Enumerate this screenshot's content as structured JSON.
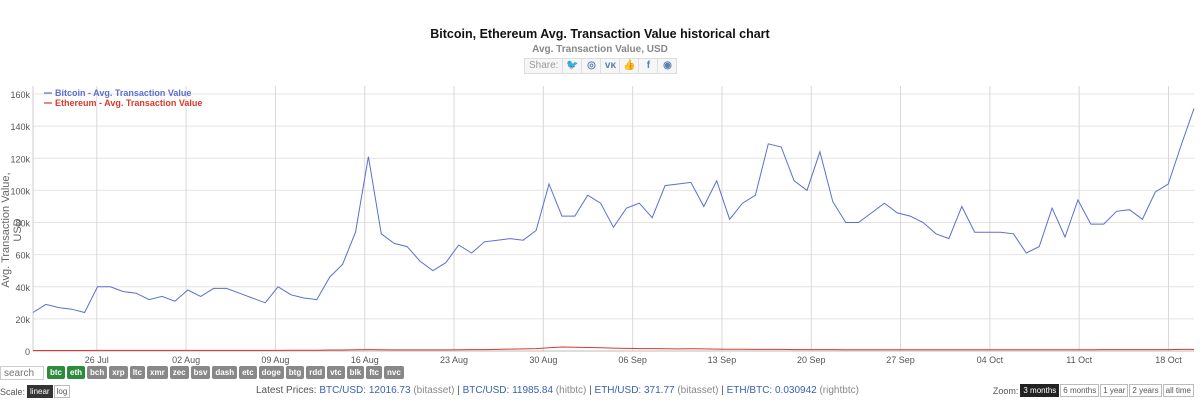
{
  "chart_data": {
    "type": "line",
    "title": "Bitcoin, Ethereum Avg. Transaction Value historical chart",
    "subtitle": "Avg. Transaction Value, USD",
    "ylabel": "Avg. Transaction Value, USD",
    "ylim": [
      0,
      165000
    ],
    "yticks": [
      0,
      20000,
      40000,
      60000,
      80000,
      100000,
      120000,
      140000,
      160000
    ],
    "ytick_labels": [
      "0",
      "20k",
      "40k",
      "60k",
      "80k",
      "100k",
      "120k",
      "140k",
      "160k"
    ],
    "xticks": [
      "26 Jul",
      "02 Aug",
      "09 Aug",
      "16 Aug",
      "23 Aug",
      "30 Aug",
      "06 Sep",
      "13 Sep",
      "20 Sep",
      "27 Sep",
      "04 Oct",
      "11 Oct",
      "18 Oct"
    ],
    "xtick_dates": [
      "2017-07-26",
      "2017-08-02",
      "2017-08-09",
      "2017-08-16",
      "2017-08-23",
      "2017-08-30",
      "2017-09-06",
      "2017-09-13",
      "2017-09-20",
      "2017-09-27",
      "2017-10-04",
      "2017-10-11",
      "2017-10-18"
    ],
    "x_start": "2017-07-21",
    "x_end": "2017-10-20",
    "grid": true,
    "legend_position": "top-left",
    "series": [
      {
        "name": "Bitcoin - Avg. Transaction Value",
        "color": "#5b6fcf",
        "values": [
          24000,
          29000,
          27000,
          26000,
          24000,
          40000,
          40000,
          37000,
          36000,
          32000,
          34000,
          31000,
          38000,
          34000,
          39000,
          39000,
          36000,
          33000,
          30000,
          40000,
          35000,
          33000,
          32000,
          46000,
          54000,
          74000,
          121000,
          73000,
          67000,
          65000,
          56000,
          50000,
          55000,
          66000,
          61000,
          68000,
          69000,
          70000,
          69000,
          75000,
          104000,
          84000,
          84000,
          97000,
          92000,
          77000,
          89000,
          92000,
          83000,
          103000,
          104000,
          105000,
          90000,
          106000,
          82000,
          92000,
          97000,
          129000,
          127000,
          106000,
          100000,
          124000,
          93000,
          80000,
          80000,
          86000,
          92000,
          86000,
          84000,
          80000,
          73000,
          70000,
          90000,
          74000,
          74000,
          74000,
          73000,
          61000,
          65000,
          89000,
          71000,
          94000,
          79000,
          79000,
          87000,
          88000,
          82000,
          99000,
          104000,
          128000,
          151000
        ]
      },
      {
        "name": "Ethereum - Avg. Transaction Value",
        "color": "#d9392b",
        "values": [
          300,
          300,
          300,
          300,
          300,
          400,
          400,
          400,
          400,
          400,
          400,
          400,
          400,
          400,
          400,
          400,
          400,
          400,
          400,
          400,
          500,
          500,
          500,
          600,
          600,
          800,
          900,
          800,
          700,
          700,
          700,
          700,
          700,
          800,
          900,
          900,
          1000,
          1200,
          1300,
          1500,
          2000,
          2500,
          2300,
          2200,
          2000,
          1800,
          1600,
          1500,
          1500,
          1400,
          1300,
          1400,
          1300,
          1200,
          1100,
          1100,
          1000,
          1000,
          1000,
          900,
          900,
          900,
          900,
          800,
          800,
          800,
          800,
          800,
          800,
          800,
          800,
          800,
          800,
          800,
          800,
          800,
          800,
          800,
          800,
          800,
          800,
          800,
          800,
          900,
          900,
          900,
          900,
          900,
          900,
          1000,
          1000
        ]
      }
    ]
  },
  "share": {
    "label": "Share:",
    "buttons": [
      {
        "name": "twitter-icon",
        "glyph": "🐦"
      },
      {
        "name": "reddit-icon",
        "glyph": "◎"
      },
      {
        "name": "vk-icon",
        "glyph": "ᴠᴋ"
      },
      {
        "name": "like-icon",
        "glyph": "👍"
      },
      {
        "name": "facebook-icon",
        "glyph": "f"
      },
      {
        "name": "weibo-icon",
        "glyph": "◉"
      }
    ]
  },
  "search": {
    "placeholder": "search"
  },
  "coins": [
    {
      "label": "btc",
      "active": true
    },
    {
      "label": "eth",
      "active": true
    },
    {
      "label": "bch",
      "active": false
    },
    {
      "label": "xrp",
      "active": false
    },
    {
      "label": "ltc",
      "active": false
    },
    {
      "label": "xmr",
      "active": false
    },
    {
      "label": "zec",
      "active": false
    },
    {
      "label": "bsv",
      "active": false
    },
    {
      "label": "dash",
      "active": false
    },
    {
      "label": "etc",
      "active": false
    },
    {
      "label": "doge",
      "active": false
    },
    {
      "label": "btg",
      "active": false
    },
    {
      "label": "rdd",
      "active": false
    },
    {
      "label": "vtc",
      "active": false
    },
    {
      "label": "blk",
      "active": false
    },
    {
      "label": "ftc",
      "active": false
    },
    {
      "label": "nvc",
      "active": false
    }
  ],
  "scale": {
    "label": "Scale:",
    "options": [
      {
        "label": "linear",
        "active": true
      },
      {
        "label": "log",
        "active": false
      }
    ]
  },
  "latest_prices": {
    "label": "Latest Prices:",
    "items": [
      {
        "pair": "BTC/USD:",
        "value": "12016.73",
        "source": "(bitasset)"
      },
      {
        "pair": "BTC/USD:",
        "value": "11985.84",
        "source": "(hitbtc)"
      },
      {
        "pair": "ETH/USD:",
        "value": "371.77",
        "source": "(bitasset)"
      },
      {
        "pair": "ETH/BTC:",
        "value": "0.030942",
        "source": "(rightbtc)"
      }
    ]
  },
  "zoom": {
    "label": "Zoom:",
    "options": [
      {
        "label": "3 months",
        "active": true
      },
      {
        "label": "6 months",
        "active": false
      },
      {
        "label": "1 year",
        "active": false
      },
      {
        "label": "2 years",
        "active": false
      },
      {
        "label": "all time",
        "active": false
      }
    ]
  }
}
